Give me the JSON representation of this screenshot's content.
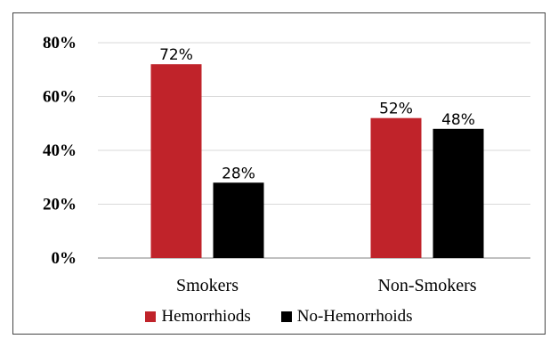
{
  "chart_data": {
    "type": "bar",
    "categories": [
      "Smokers",
      "Non-Smokers"
    ],
    "series": [
      {
        "name": "Hemorrhiods",
        "values": [
          72,
          52
        ],
        "color": "#C0232A",
        "labels": [
          "72%",
          "52%"
        ]
      },
      {
        "name": "No-Hemorrhoids",
        "values": [
          28,
          48
        ],
        "color": "#000000",
        "labels": [
          "28%",
          "48%"
        ]
      }
    ],
    "ylim": [
      0,
      80
    ],
    "yticks": [
      0,
      20,
      40,
      60,
      80
    ],
    "ytick_labels": [
      "0%",
      "20%",
      "40%",
      "60%",
      "80%"
    ],
    "grid": true,
    "legend_position": "bottom",
    "title": "",
    "xlabel": "",
    "ylabel": ""
  }
}
